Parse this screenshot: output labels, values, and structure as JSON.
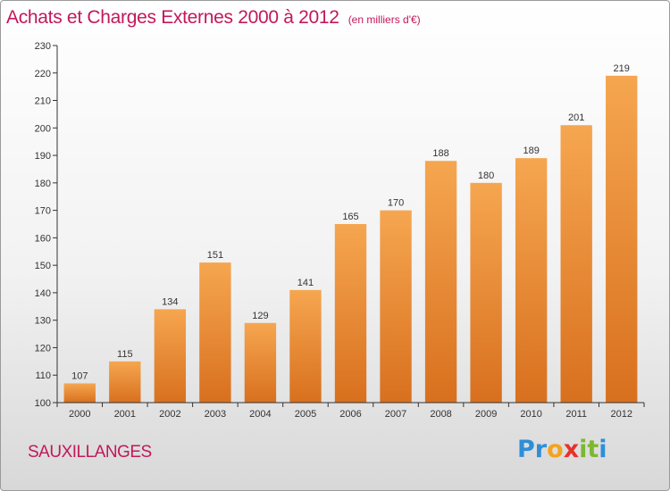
{
  "header": {
    "title": "Achats et Charges Externes 2000 à 2012",
    "subtitle": "(en milliers d'€)"
  },
  "footer": {
    "city": "SAUXILLANGES",
    "logo_letters": [
      "P",
      "r",
      "o",
      "x",
      "i",
      "t",
      "i"
    ],
    "logo_colors": [
      "#2e8fd8",
      "#2e8fd8",
      "#f5a31a",
      "#e8322c",
      "#7cb82f",
      "#7cb82f",
      "#2e8fd8"
    ]
  },
  "colors": {
    "bar_light": "#f6a650",
    "bar_dark": "#d8701e",
    "title": "#c2185b"
  },
  "chart_data": {
    "type": "bar",
    "title": "Achats et Charges Externes 2000 à 2012",
    "subtitle": "(en milliers d'€)",
    "categories": [
      "2000",
      "2001",
      "2002",
      "2003",
      "2004",
      "2005",
      "2006",
      "2007",
      "2008",
      "2009",
      "2010",
      "2011",
      "2012"
    ],
    "values": [
      107,
      115,
      134,
      151,
      129,
      141,
      165,
      170,
      188,
      180,
      189,
      201,
      219
    ],
    "ylim": [
      100,
      230
    ],
    "yticks": [
      100,
      110,
      120,
      130,
      140,
      150,
      160,
      170,
      180,
      190,
      200,
      210,
      220,
      230
    ],
    "grid": false,
    "data_labels": true
  }
}
